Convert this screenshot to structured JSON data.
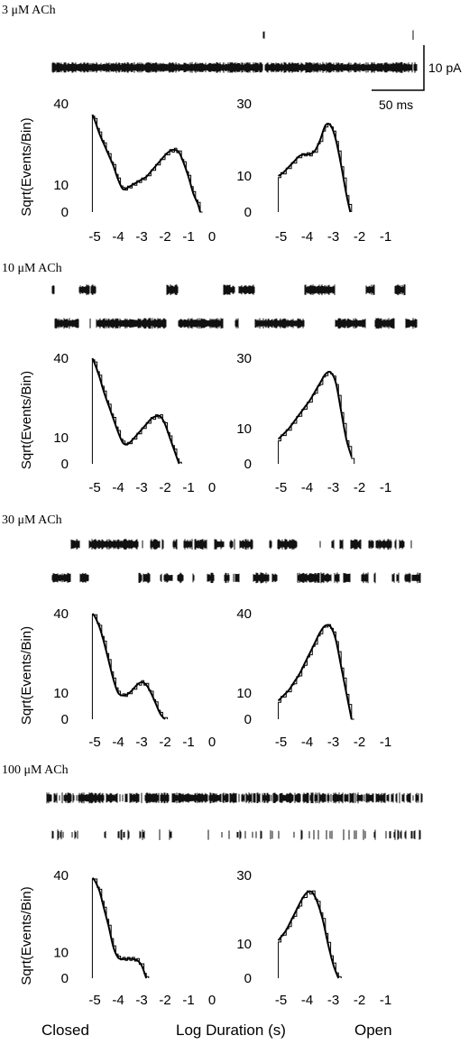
{
  "figure": {
    "bottom_labels": {
      "closed": "Closed",
      "xlabel": "Log Duration (s)",
      "open": "Open"
    },
    "scale_bar": {
      "current": "10 pA",
      "time": "50 ms"
    },
    "ylabel": "Sqrt(Events/Bin)"
  },
  "chart_data": [
    {
      "type": "line",
      "panel": "closed",
      "condition": "3 μM ACh",
      "xlabel": "",
      "ylabel": "Sqrt(Events/Bin)",
      "xlim": [
        -5.5,
        0
      ],
      "xticks": [
        -5,
        -4,
        -3,
        -2,
        -1,
        0
      ],
      "ylim": [
        0,
        40
      ],
      "yticks": [
        0,
        10,
        40
      ],
      "x": [
        -5.1,
        -5.0,
        -4.8,
        -4.6,
        -4.4,
        -4.2,
        -4.0,
        -3.8,
        -3.6,
        -3.4,
        -3.2,
        -3.0,
        -2.8,
        -2.6,
        -2.4,
        -2.2,
        -2.0,
        -1.8,
        -1.6,
        -1.4,
        -1.2,
        -1.0,
        -0.8,
        -0.6,
        -0.5
      ],
      "y": [
        36,
        34,
        29,
        25,
        21,
        17,
        12,
        8.5,
        9,
        10,
        11,
        12,
        13,
        15,
        17,
        19,
        21,
        22.5,
        23,
        22,
        18,
        13,
        7,
        3,
        0
      ]
    },
    {
      "type": "line",
      "panel": "open",
      "condition": "3 μM ACh",
      "xlabel": "",
      "ylabel": "",
      "xlim": [
        -5.5,
        -0.5
      ],
      "xticks": [
        -5,
        -4,
        -3,
        -2,
        -1
      ],
      "ylim": [
        0,
        30
      ],
      "yticks": [
        0,
        10,
        30
      ],
      "x": [
        -5.1,
        -4.9,
        -4.7,
        -4.5,
        -4.3,
        -4.1,
        -3.9,
        -3.7,
        -3.5,
        -3.3,
        -3.1,
        -2.9,
        -2.7,
        -2.5,
        -2.35
      ],
      "y": [
        10,
        11,
        12.5,
        14,
        15.5,
        16,
        16,
        17,
        20,
        24,
        24,
        20,
        13,
        5,
        0
      ]
    },
    {
      "type": "line",
      "panel": "closed",
      "condition": "10 μM ACh",
      "xlabel": "",
      "ylabel": "Sqrt(Events/Bin)",
      "xlim": [
        -5.5,
        0
      ],
      "xticks": [
        -5,
        -4,
        -3,
        -2,
        -1,
        0
      ],
      "ylim": [
        0,
        40
      ],
      "yticks": [
        0,
        10,
        40
      ],
      "x": [
        -5.1,
        -5.0,
        -4.8,
        -4.6,
        -4.4,
        -4.2,
        -4.0,
        -3.8,
        -3.6,
        -3.4,
        -3.2,
        -3.0,
        -2.8,
        -2.6,
        -2.4,
        -2.2,
        -2.0,
        -1.8,
        -1.6,
        -1.4
      ],
      "y": [
        40,
        38,
        33,
        27,
        22,
        17,
        12,
        8,
        7.5,
        9,
        11,
        13,
        15,
        17,
        18,
        18,
        15,
        10,
        5,
        0
      ]
    },
    {
      "type": "line",
      "panel": "open",
      "condition": "10 μM ACh",
      "xlabel": "",
      "ylabel": "",
      "xlim": [
        -5.5,
        -0.5
      ],
      "xticks": [
        -5,
        -4,
        -3,
        -2,
        -1
      ],
      "ylim": [
        0,
        30
      ],
      "yticks": [
        0,
        10,
        30
      ],
      "x": [
        -5.1,
        -4.9,
        -4.7,
        -4.5,
        -4.3,
        -4.1,
        -3.9,
        -3.7,
        -3.5,
        -3.3,
        -3.1,
        -2.9,
        -2.7,
        -2.5,
        -2.3
      ],
      "y": [
        7,
        8.5,
        10,
        12,
        14,
        16,
        18,
        20.5,
        23,
        25.5,
        26,
        23,
        15,
        7,
        2
      ]
    },
    {
      "type": "line",
      "panel": "closed",
      "condition": "30 μM ACh",
      "xlabel": "",
      "ylabel": "Sqrt(Events/Bin)",
      "xlim": [
        -5.5,
        0
      ],
      "xticks": [
        -5,
        -4,
        -3,
        -2,
        -1,
        0
      ],
      "ylim": [
        0,
        40
      ],
      "yticks": [
        0,
        10,
        40
      ],
      "x": [
        -5.1,
        -5.0,
        -4.8,
        -4.6,
        -4.4,
        -4.2,
        -4.0,
        -3.8,
        -3.6,
        -3.4,
        -3.2,
        -3.0,
        -2.8,
        -2.6,
        -2.4,
        -2.2,
        -2.0
      ],
      "y": [
        40,
        39,
        35,
        29,
        22,
        15,
        10,
        9,
        9.5,
        11,
        13,
        14,
        13,
        10,
        6,
        2,
        0
      ]
    },
    {
      "type": "line",
      "panel": "open",
      "condition": "30 μM ACh",
      "xlabel": "",
      "ylabel": "",
      "xlim": [
        -5.5,
        -0.5
      ],
      "xticks": [
        -5,
        -4,
        -3,
        -2,
        -1
      ],
      "ylim": [
        0,
        40
      ],
      "yticks": [
        0,
        10,
        40
      ],
      "x": [
        -5.1,
        -4.9,
        -4.7,
        -4.5,
        -4.3,
        -4.1,
        -3.9,
        -3.7,
        -3.5,
        -3.3,
        -3.1,
        -2.9,
        -2.7,
        -2.5,
        -2.3
      ],
      "y": [
        7,
        9,
        11,
        14,
        17,
        21,
        25,
        29,
        33,
        35.5,
        35,
        30,
        20,
        10,
        0
      ]
    },
    {
      "type": "line",
      "panel": "closed",
      "condition": "100 μM ACh",
      "xlabel": "",
      "ylabel": "Sqrt(Events/Bin)",
      "xlim": [
        -5.5,
        0
      ],
      "xticks": [
        -5,
        -4,
        -3,
        -2,
        -1,
        0
      ],
      "ylim": [
        0,
        40
      ],
      "yticks": [
        0,
        10,
        40
      ],
      "x": [
        -5.1,
        -5.0,
        -4.8,
        -4.6,
        -4.4,
        -4.2,
        -4.0,
        -3.8,
        -3.6,
        -3.4,
        -3.2,
        -3.0,
        -2.8
      ],
      "y": [
        39,
        38,
        34,
        27,
        20,
        12,
        8,
        7.5,
        7.5,
        7.5,
        7,
        5,
        0
      ]
    },
    {
      "type": "line",
      "panel": "open",
      "condition": "100 μM ACh",
      "xlabel": "",
      "ylabel": "",
      "xlim": [
        -5.5,
        -0.5
      ],
      "xticks": [
        -5,
        -4,
        -3,
        -2,
        -1
      ],
      "ylim": [
        0,
        30
      ],
      "yticks": [
        0,
        10,
        30
      ],
      "x": [
        -5.1,
        -5.0,
        -4.8,
        -4.6,
        -4.4,
        -4.2,
        -4.0,
        -3.8,
        -3.6,
        -3.4,
        -3.2,
        -3.0,
        -2.8
      ],
      "y": [
        11,
        12,
        14,
        17,
        20,
        23,
        25,
        25,
        22,
        17,
        10,
        4,
        0
      ]
    }
  ],
  "traces": [
    {
      "label": "3 μM ACh"
    },
    {
      "label": "10 μM ACh"
    },
    {
      "label": "30 μM ACh"
    },
    {
      "label": "100 μM ACh"
    }
  ]
}
